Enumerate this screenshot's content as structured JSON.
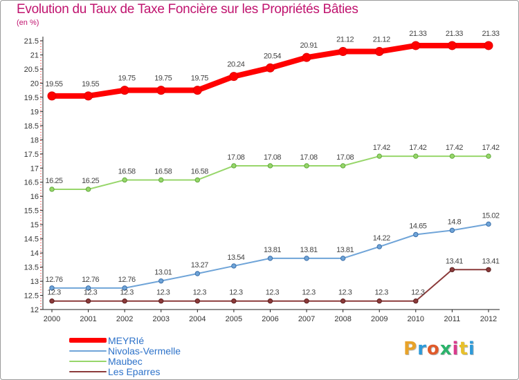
{
  "title": "Evolution du Taux de Taxe Foncière sur les Propriétés Bâties",
  "unit": "(en %)",
  "logo_text": "Proxiti",
  "chart_data": {
    "type": "line",
    "title": "Evolution du Taux de Taxe Foncière sur les Propriétés Bâties",
    "ylabel": "(en %)",
    "xlabel": "",
    "x": [
      "2000",
      "2001",
      "2002",
      "2003",
      "2004",
      "2005",
      "2006",
      "2007",
      "2008",
      "2009",
      "2010",
      "2011",
      "2012"
    ],
    "ylim": [
      12,
      21.5
    ],
    "yticks": [
      "12",
      "12.5",
      "13",
      "13.5",
      "14",
      "14.5",
      "15",
      "15.5",
      "16",
      "16.5",
      "17",
      "17.5",
      "18",
      "18.5",
      "19",
      "19.5",
      "20",
      "20.5",
      "21",
      "21.5"
    ],
    "grid": false,
    "legend_position": "bottom-left",
    "series": [
      {
        "name": "MEYRIé",
        "color": "#ff0000",
        "values": [
          19.55,
          19.55,
          19.75,
          19.75,
          19.75,
          20.24,
          20.54,
          20.91,
          21.12,
          21.12,
          21.33,
          21.33,
          21.33
        ],
        "labels": [
          "19.55",
          "19.55",
          "19.75",
          "19.75",
          "19.75",
          "20.24",
          "20.54",
          "20.91",
          "21.12",
          "21.12",
          "21.33",
          "21.33",
          "21.33"
        ]
      },
      {
        "name": "Nivolas-Vermelle",
        "color": "#6fa4d8",
        "values": [
          12.76,
          12.76,
          12.76,
          13.01,
          13.27,
          13.54,
          13.81,
          13.81,
          13.81,
          14.22,
          14.65,
          14.8,
          15.02
        ],
        "labels": [
          "12.76",
          "12.76",
          "12.76",
          "13.01",
          "13.27",
          "13.54",
          "13.81",
          "13.81",
          "13.81",
          "14.22",
          "14.65",
          "14.8",
          "15.02"
        ]
      },
      {
        "name": "Maubec",
        "color": "#97d66a",
        "values": [
          16.25,
          16.25,
          16.58,
          16.58,
          16.58,
          17.08,
          17.08,
          17.08,
          17.08,
          17.42,
          17.42,
          17.42,
          17.42
        ],
        "labels": [
          "16.25",
          "16.25",
          "16.58",
          "16.58",
          "16.58",
          "17.08",
          "17.08",
          "17.08",
          "17.08",
          "17.42",
          "17.42",
          "17.42",
          "17.42"
        ]
      },
      {
        "name": "Les Eparres",
        "color": "#8b3a3a",
        "values": [
          12.3,
          12.3,
          12.3,
          12.3,
          12.3,
          12.3,
          12.3,
          12.3,
          12.3,
          12.3,
          12.3,
          13.41,
          13.41
        ],
        "labels": [
          "12.3",
          "12.3",
          "12.3",
          "12.3",
          "12.3",
          "12.3",
          "12.3",
          "12.3",
          "12.3",
          "12.3",
          "12.3",
          "13.41",
          "13.41"
        ]
      }
    ]
  }
}
